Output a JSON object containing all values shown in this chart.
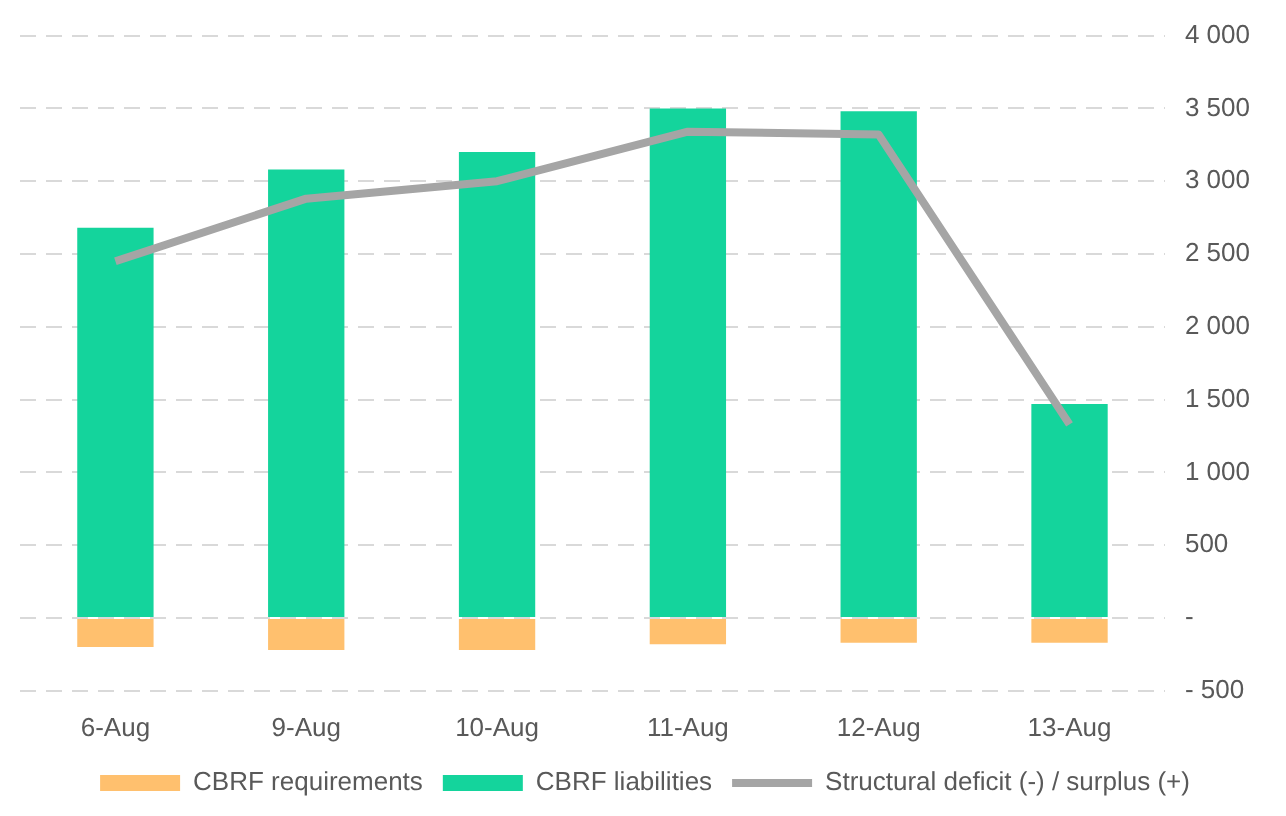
{
  "chart_data": {
    "type": "bar",
    "stacked": true,
    "categories": [
      "6-Aug",
      "9-Aug",
      "10-Aug",
      "11-Aug",
      "12-Aug",
      "13-Aug"
    ],
    "series": [
      {
        "name": "CBRF requirements",
        "color": "#ffc06e",
        "values": [
          -200,
          -220,
          -220,
          -180,
          -170,
          -170
        ]
      },
      {
        "name": "CBRF liabilities",
        "color": "#14d49c",
        "values": [
          2680,
          3080,
          3200,
          3500,
          3480,
          1470
        ]
      },
      {
        "name": "Structural deficit (-) / surplus (+)",
        "type": "line",
        "color": "#a5a5a5",
        "values": [
          2450,
          2880,
          3000,
          3340,
          3320,
          1330
        ]
      }
    ],
    "ylim": [
      -500,
      4000
    ],
    "yticks": [
      {
        "value": -500,
        "label": "- 500"
      },
      {
        "value": 0,
        "label": "-"
      },
      500,
      {
        "value": 1000,
        "label": "1 000"
      },
      {
        "value": 1500,
        "label": "1 500"
      },
      {
        "value": 2000,
        "label": "2 000"
      },
      {
        "value": 2500,
        "label": "2 500"
      },
      {
        "value": 3000,
        "label": "3 000"
      },
      {
        "value": 3500,
        "label": "3 500"
      },
      {
        "value": 4000,
        "label": "4 000"
      }
    ],
    "grid": "y",
    "legend": "bottom",
    "marker": "none",
    "line_style": "solid"
  }
}
